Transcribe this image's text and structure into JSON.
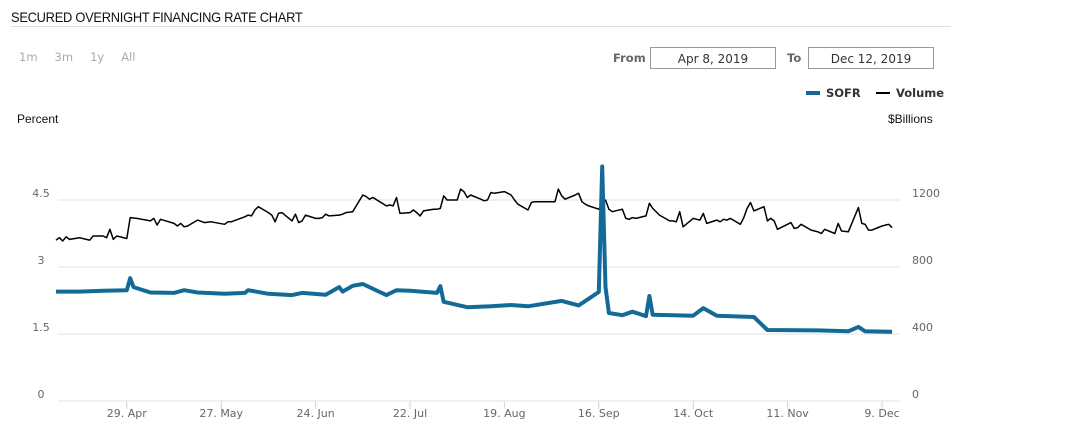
{
  "header": {
    "title": "SECURED OVERNIGHT FINANCING RATE CHART"
  },
  "ranges": [
    "1m",
    "3m",
    "1y",
    "All"
  ],
  "date_range": {
    "from_label": "From",
    "from_value": "Apr 8, 2019",
    "to_label": "To",
    "to_value": "Dec 12, 2019"
  },
  "colors": {
    "sofr": "#136a96",
    "volume": "#000000",
    "grid": "#dde0e6"
  },
  "chart_data": {
    "type": "line",
    "title": "Secured Overnight Financing Rate",
    "ylabel": "Percent",
    "y2label": "$Billions",
    "ylim": [
      0,
      6
    ],
    "y2lim": [
      0,
      1600
    ],
    "yticks": [
      "0",
      "1.5",
      "3",
      "4.5"
    ],
    "yticks_values": [
      0,
      1.5,
      3,
      4.5
    ],
    "y2ticks": [
      "0",
      "400",
      "800",
      "1200"
    ],
    "y2ticks_values": [
      0,
      400,
      800,
      1200
    ],
    "xrange": [
      "2019-04-08",
      "2019-12-12"
    ],
    "xticks": [
      {
        "label": "29. Apr",
        "date": "2019-04-29"
      },
      {
        "label": "27. May",
        "date": "2019-05-27"
      },
      {
        "label": "24. Jun",
        "date": "2019-06-24"
      },
      {
        "label": "22. Jul",
        "date": "2019-07-22"
      },
      {
        "label": "19. Aug",
        "date": "2019-08-19"
      },
      {
        "label": "16. Sep",
        "date": "2019-09-16"
      },
      {
        "label": "14. Oct",
        "date": "2019-10-14"
      },
      {
        "label": "11. Nov",
        "date": "2019-11-11"
      },
      {
        "label": "9. Dec",
        "date": "2019-12-09"
      }
    ],
    "legend": [
      {
        "name": "SOFR"
      },
      {
        "name": "Volume"
      }
    ],
    "series": [
      {
        "name": "SOFR",
        "axis": "left",
        "points": [
          [
            "2019-04-08",
            2.45
          ],
          [
            "2019-04-15",
            2.45
          ],
          [
            "2019-04-22",
            2.47
          ],
          [
            "2019-04-29",
            2.48
          ],
          [
            "2019-04-30",
            2.75
          ],
          [
            "2019-05-01",
            2.55
          ],
          [
            "2019-05-06",
            2.43
          ],
          [
            "2019-05-13",
            2.42
          ],
          [
            "2019-05-16",
            2.48
          ],
          [
            "2019-05-20",
            2.43
          ],
          [
            "2019-05-28",
            2.4
          ],
          [
            "2019-06-03",
            2.42
          ],
          [
            "2019-06-04",
            2.48
          ],
          [
            "2019-06-10",
            2.4
          ],
          [
            "2019-06-17",
            2.37
          ],
          [
            "2019-06-20",
            2.42
          ],
          [
            "2019-06-27",
            2.38
          ],
          [
            "2019-07-01",
            2.55
          ],
          [
            "2019-07-02",
            2.45
          ],
          [
            "2019-07-05",
            2.58
          ],
          [
            "2019-07-08",
            2.62
          ],
          [
            "2019-07-15",
            2.37
          ],
          [
            "2019-07-18",
            2.48
          ],
          [
            "2019-07-22",
            2.47
          ],
          [
            "2019-07-30",
            2.42
          ],
          [
            "2019-07-31",
            2.57
          ],
          [
            "2019-08-01",
            2.22
          ],
          [
            "2019-08-08",
            2.1
          ],
          [
            "2019-08-15",
            2.12
          ],
          [
            "2019-08-21",
            2.15
          ],
          [
            "2019-08-26",
            2.12
          ],
          [
            "2019-09-05",
            2.24
          ],
          [
            "2019-09-10",
            2.14
          ],
          [
            "2019-09-16",
            2.44
          ],
          [
            "2019-09-17",
            5.25
          ],
          [
            "2019-09-18",
            2.55
          ],
          [
            "2019-09-19",
            1.97
          ],
          [
            "2019-09-23",
            1.92
          ],
          [
            "2019-09-26",
            2.0
          ],
          [
            "2019-09-30",
            1.9
          ],
          [
            "2019-10-01",
            2.35
          ],
          [
            "2019-10-02",
            1.93
          ],
          [
            "2019-10-14",
            1.91
          ],
          [
            "2019-10-17",
            2.08
          ],
          [
            "2019-10-21",
            1.91
          ],
          [
            "2019-11-01",
            1.88
          ],
          [
            "2019-11-05",
            1.59
          ],
          [
            "2019-11-20",
            1.58
          ],
          [
            "2019-11-29",
            1.56
          ],
          [
            "2019-12-02",
            1.66
          ],
          [
            "2019-12-04",
            1.56
          ],
          [
            "2019-12-12",
            1.55
          ]
        ]
      },
      {
        "name": "Volume",
        "axis": "right",
        "points": [
          [
            "2019-04-08",
            960
          ],
          [
            "2019-04-09",
            975
          ],
          [
            "2019-04-10",
            955
          ],
          [
            "2019-04-11",
            980
          ],
          [
            "2019-04-12",
            965
          ],
          [
            "2019-04-15",
            975
          ],
          [
            "2019-04-17",
            965
          ],
          [
            "2019-04-18",
            960
          ],
          [
            "2019-04-19",
            985
          ],
          [
            "2019-04-22",
            985
          ],
          [
            "2019-04-23",
            975
          ],
          [
            "2019-04-24",
            1025
          ],
          [
            "2019-04-25",
            965
          ],
          [
            "2019-04-26",
            985
          ],
          [
            "2019-04-29",
            970
          ],
          [
            "2019-04-30",
            1095
          ],
          [
            "2019-05-02",
            1090
          ],
          [
            "2019-05-06",
            1075
          ],
          [
            "2019-05-07",
            1090
          ],
          [
            "2019-05-08",
            1050
          ],
          [
            "2019-05-09",
            1085
          ],
          [
            "2019-05-13",
            1060
          ],
          [
            "2019-05-14",
            1045
          ],
          [
            "2019-05-15",
            1060
          ],
          [
            "2019-05-16",
            1040
          ],
          [
            "2019-05-17",
            1045
          ],
          [
            "2019-05-20",
            1080
          ],
          [
            "2019-05-22",
            1065
          ],
          [
            "2019-05-24",
            1070
          ],
          [
            "2019-05-28",
            1055
          ],
          [
            "2019-05-29",
            1070
          ],
          [
            "2019-05-30",
            1070
          ],
          [
            "2019-06-03",
            1100
          ],
          [
            "2019-06-04",
            1110
          ],
          [
            "2019-06-05",
            1105
          ],
          [
            "2019-06-06",
            1140
          ],
          [
            "2019-06-07",
            1160
          ],
          [
            "2019-06-10",
            1125
          ],
          [
            "2019-06-11",
            1110
          ],
          [
            "2019-06-12",
            1070
          ],
          [
            "2019-06-13",
            1120
          ],
          [
            "2019-06-14",
            1125
          ],
          [
            "2019-06-17",
            1075
          ],
          [
            "2019-06-18",
            1115
          ],
          [
            "2019-06-19",
            1065
          ],
          [
            "2019-06-20",
            1075
          ],
          [
            "2019-06-21",
            1110
          ],
          [
            "2019-06-24",
            1090
          ],
          [
            "2019-06-25",
            1090
          ],
          [
            "2019-06-26",
            1095
          ],
          [
            "2019-06-27",
            1115
          ],
          [
            "2019-06-28",
            1105
          ],
          [
            "2019-07-01",
            1110
          ],
          [
            "2019-07-02",
            1115
          ],
          [
            "2019-07-03",
            1125
          ],
          [
            "2019-07-05",
            1130
          ],
          [
            "2019-07-08",
            1230
          ],
          [
            "2019-07-09",
            1220
          ],
          [
            "2019-07-10",
            1205
          ],
          [
            "2019-07-11",
            1215
          ],
          [
            "2019-07-15",
            1165
          ],
          [
            "2019-07-16",
            1170
          ],
          [
            "2019-07-17",
            1165
          ],
          [
            "2019-07-18",
            1215
          ],
          [
            "2019-07-19",
            1120
          ],
          [
            "2019-07-22",
            1125
          ],
          [
            "2019-07-23",
            1140
          ],
          [
            "2019-07-24",
            1125
          ],
          [
            "2019-07-25",
            1105
          ],
          [
            "2019-07-26",
            1135
          ],
          [
            "2019-07-29",
            1145
          ],
          [
            "2019-07-30",
            1145
          ],
          [
            "2019-07-31",
            1150
          ],
          [
            "2019-08-01",
            1225
          ],
          [
            "2019-08-02",
            1200
          ],
          [
            "2019-08-05",
            1200
          ],
          [
            "2019-08-06",
            1265
          ],
          [
            "2019-08-07",
            1250
          ],
          [
            "2019-08-08",
            1215
          ],
          [
            "2019-08-09",
            1230
          ],
          [
            "2019-08-12",
            1205
          ],
          [
            "2019-08-13",
            1195
          ],
          [
            "2019-08-14",
            1200
          ],
          [
            "2019-08-15",
            1245
          ],
          [
            "2019-08-16",
            1240
          ],
          [
            "2019-08-19",
            1250
          ],
          [
            "2019-08-20",
            1240
          ],
          [
            "2019-08-21",
            1230
          ],
          [
            "2019-08-22",
            1200
          ],
          [
            "2019-08-23",
            1175
          ],
          [
            "2019-08-26",
            1140
          ],
          [
            "2019-08-27",
            1185
          ],
          [
            "2019-08-28",
            1190
          ],
          [
            "2019-08-29",
            1190
          ],
          [
            "2019-08-30",
            1190
          ],
          [
            "2019-09-03",
            1190
          ],
          [
            "2019-09-04",
            1265
          ],
          [
            "2019-09-05",
            1225
          ],
          [
            "2019-09-06",
            1205
          ],
          [
            "2019-09-09",
            1230
          ],
          [
            "2019-09-10",
            1240
          ],
          [
            "2019-09-11",
            1190
          ],
          [
            "2019-09-12",
            1175
          ],
          [
            "2019-09-13",
            1165
          ],
          [
            "2019-09-16",
            1145
          ],
          [
            "2019-09-17",
            1180
          ],
          [
            "2019-09-18",
            1200
          ],
          [
            "2019-09-19",
            1145
          ],
          [
            "2019-09-20",
            1130
          ],
          [
            "2019-09-23",
            1145
          ],
          [
            "2019-09-24",
            1090
          ],
          [
            "2019-09-25",
            1085
          ],
          [
            "2019-09-26",
            1095
          ],
          [
            "2019-09-27",
            1090
          ],
          [
            "2019-09-30",
            1105
          ],
          [
            "2019-10-01",
            1180
          ],
          [
            "2019-10-02",
            1150
          ],
          [
            "2019-10-04",
            1110
          ],
          [
            "2019-10-07",
            1075
          ],
          [
            "2019-10-08",
            1075
          ],
          [
            "2019-10-09",
            1070
          ],
          [
            "2019-10-10",
            1130
          ],
          [
            "2019-10-11",
            1040
          ],
          [
            "2019-10-14",
            1090
          ],
          [
            "2019-10-15",
            1085
          ],
          [
            "2019-10-16",
            1080
          ],
          [
            "2019-10-17",
            1120
          ],
          [
            "2019-10-18",
            1060
          ],
          [
            "2019-10-21",
            1080
          ],
          [
            "2019-10-22",
            1070
          ],
          [
            "2019-10-23",
            1085
          ],
          [
            "2019-10-24",
            1080
          ],
          [
            "2019-10-25",
            1090
          ],
          [
            "2019-10-28",
            1055
          ],
          [
            "2019-10-29",
            1095
          ],
          [
            "2019-10-30",
            1150
          ],
          [
            "2019-10-31",
            1185
          ],
          [
            "2019-11-01",
            1135
          ],
          [
            "2019-11-04",
            1160
          ],
          [
            "2019-11-05",
            1075
          ],
          [
            "2019-11-06",
            1090
          ],
          [
            "2019-11-07",
            1075
          ],
          [
            "2019-11-08",
            1025
          ],
          [
            "2019-11-12",
            1065
          ],
          [
            "2019-11-13",
            1030
          ],
          [
            "2019-11-14",
            1035
          ],
          [
            "2019-11-15",
            1055
          ],
          [
            "2019-11-18",
            1020
          ],
          [
            "2019-11-19",
            1015
          ],
          [
            "2019-11-20",
            1010
          ],
          [
            "2019-11-21",
            1000
          ],
          [
            "2019-11-22",
            1025
          ],
          [
            "2019-11-25",
            1000
          ],
          [
            "2019-11-26",
            1060
          ],
          [
            "2019-11-27",
            1015
          ],
          [
            "2019-11-29",
            1010
          ],
          [
            "2019-12-02",
            1155
          ],
          [
            "2019-12-03",
            1060
          ],
          [
            "2019-12-04",
            1055
          ],
          [
            "2019-12-05",
            1020
          ],
          [
            "2019-12-06",
            1020
          ],
          [
            "2019-12-09",
            1045
          ],
          [
            "2019-12-10",
            1050
          ],
          [
            "2019-12-11",
            1055
          ],
          [
            "2019-12-12",
            1035
          ]
        ]
      }
    ]
  }
}
